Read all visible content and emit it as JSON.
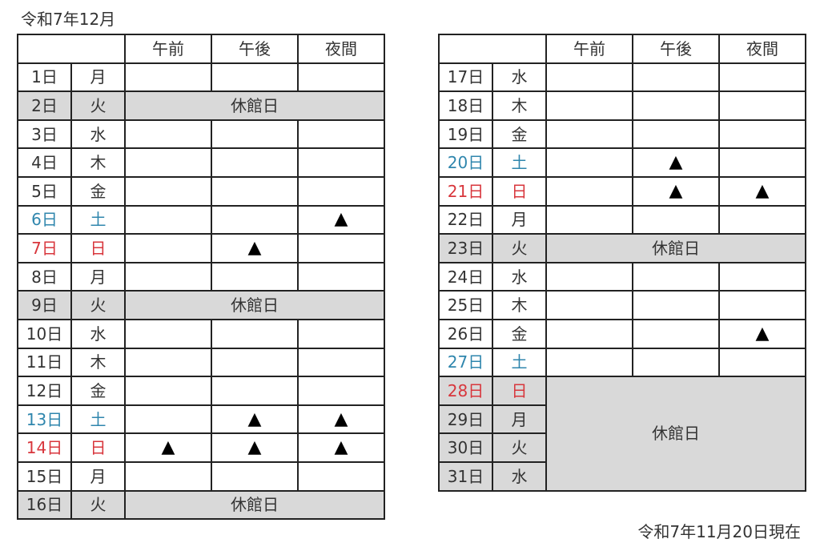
{
  "title": "令和7年12月",
  "footnote": "令和7年11月20日現在",
  "headers": [
    "午前",
    "午後",
    "夜間"
  ],
  "closed_label": "休館日",
  "mark_symbol": "▲",
  "colors": {
    "saturday": "#2f86ad",
    "sunday": "#d8363c",
    "closed_bg": "#d9d9d9"
  },
  "left_table": [
    {
      "day": "1日",
      "weekday": "月",
      "type": "",
      "slots": [
        "",
        "",
        ""
      ]
    },
    {
      "day": "2日",
      "weekday": "火",
      "type": "",
      "closed": true
    },
    {
      "day": "3日",
      "weekday": "水",
      "type": "",
      "slots": [
        "",
        "",
        ""
      ]
    },
    {
      "day": "4日",
      "weekday": "木",
      "type": "",
      "slots": [
        "",
        "",
        ""
      ]
    },
    {
      "day": "5日",
      "weekday": "金",
      "type": "",
      "slots": [
        "",
        "",
        ""
      ]
    },
    {
      "day": "6日",
      "weekday": "土",
      "type": "sat",
      "slots": [
        "",
        "",
        "▲"
      ]
    },
    {
      "day": "7日",
      "weekday": "日",
      "type": "sun",
      "slots": [
        "",
        "▲",
        ""
      ]
    },
    {
      "day": "8日",
      "weekday": "月",
      "type": "",
      "slots": [
        "",
        "",
        ""
      ]
    },
    {
      "day": "9日",
      "weekday": "火",
      "type": "",
      "closed": true
    },
    {
      "day": "10日",
      "weekday": "水",
      "type": "",
      "slots": [
        "",
        "",
        ""
      ]
    },
    {
      "day": "11日",
      "weekday": "木",
      "type": "",
      "slots": [
        "",
        "",
        ""
      ]
    },
    {
      "day": "12日",
      "weekday": "金",
      "type": "",
      "slots": [
        "",
        "",
        ""
      ]
    },
    {
      "day": "13日",
      "weekday": "土",
      "type": "sat",
      "slots": [
        "",
        "▲",
        "▲"
      ]
    },
    {
      "day": "14日",
      "weekday": "日",
      "type": "sun",
      "slots": [
        "▲",
        "▲",
        "▲"
      ]
    },
    {
      "day": "15日",
      "weekday": "月",
      "type": "",
      "slots": [
        "",
        "",
        ""
      ]
    },
    {
      "day": "16日",
      "weekday": "火",
      "type": "",
      "closed": true
    }
  ],
  "right_table": [
    {
      "day": "17日",
      "weekday": "水",
      "type": "",
      "slots": [
        "",
        "",
        ""
      ]
    },
    {
      "day": "18日",
      "weekday": "木",
      "type": "",
      "slots": [
        "",
        "",
        ""
      ]
    },
    {
      "day": "19日",
      "weekday": "金",
      "type": "",
      "slots": [
        "",
        "",
        ""
      ]
    },
    {
      "day": "20日",
      "weekday": "土",
      "type": "sat",
      "slots": [
        "",
        "▲",
        ""
      ]
    },
    {
      "day": "21日",
      "weekday": "日",
      "type": "sun",
      "slots": [
        "",
        "▲",
        "▲"
      ]
    },
    {
      "day": "22日",
      "weekday": "月",
      "type": "",
      "slots": [
        "",
        "",
        ""
      ]
    },
    {
      "day": "23日",
      "weekday": "火",
      "type": "",
      "closed": true
    },
    {
      "day": "24日",
      "weekday": "水",
      "type": "",
      "slots": [
        "",
        "",
        ""
      ]
    },
    {
      "day": "25日",
      "weekday": "木",
      "type": "",
      "slots": [
        "",
        "",
        ""
      ]
    },
    {
      "day": "26日",
      "weekday": "金",
      "type": "",
      "slots": [
        "",
        "",
        "▲"
      ]
    },
    {
      "day": "27日",
      "weekday": "土",
      "type": "sat",
      "slots": [
        "",
        "",
        ""
      ]
    },
    {
      "day": "28日",
      "weekday": "日",
      "type": "sun",
      "closed": true,
      "closed_span": 4
    },
    {
      "day": "29日",
      "weekday": "月",
      "type": "",
      "closed": true,
      "closed_continued": true
    },
    {
      "day": "30日",
      "weekday": "火",
      "type": "",
      "closed": true,
      "closed_continued": true
    },
    {
      "day": "31日",
      "weekday": "水",
      "type": "",
      "closed": true,
      "closed_continued": true
    }
  ]
}
